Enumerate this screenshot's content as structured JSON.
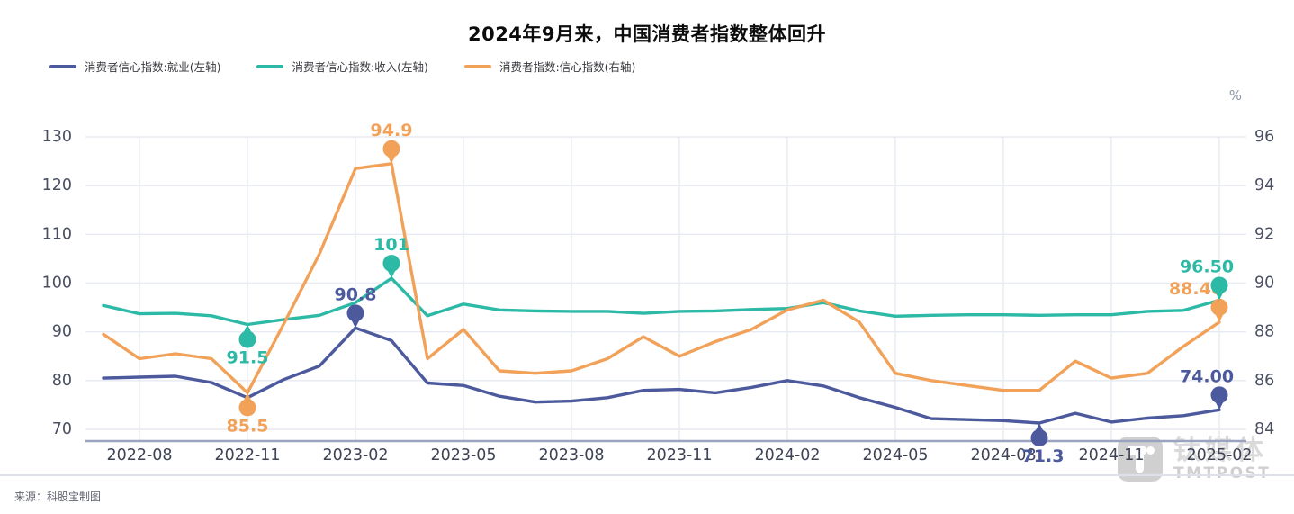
{
  "title": "2024年9月来，中国消费者指数整体回升",
  "right_axis_unit": "%",
  "source": "来源：科股宝制图",
  "watermark": {
    "cn": "钛媒体",
    "en": "TMTPOST"
  },
  "legend": [
    {
      "label": "消费者信心指数:就业(左轴)",
      "color": "#4C5A9D"
    },
    {
      "label": "消费者信心指数:收入(左轴)",
      "color": "#2CB9A6"
    },
    {
      "label": "消费者指数:信心指数(右轴)",
      "color": "#F2A159"
    }
  ],
  "chart_data": {
    "type": "line",
    "title": "2024年9月来，中国消费者指数整体回升",
    "grid": true,
    "legend_position": "top-left",
    "months": [
      "2022-07",
      "2022-08",
      "2022-09",
      "2022-10",
      "2022-11",
      "2022-12",
      "2023-01",
      "2023-02",
      "2023-03",
      "2023-04",
      "2023-05",
      "2023-06",
      "2023-07",
      "2023-08",
      "2023-09",
      "2023-10",
      "2023-11",
      "2023-12",
      "2024-01",
      "2024-02",
      "2024-03",
      "2024-04",
      "2024-05",
      "2024-06",
      "2024-07",
      "2024-08",
      "2024-09",
      "2024-10",
      "2024-11",
      "2024-12",
      "2025-01",
      "2025-02"
    ],
    "x_tick_labels": [
      "2022-08",
      "2022-11",
      "2023-02",
      "2023-05",
      "2023-08",
      "2023-11",
      "2024-02",
      "2024-05",
      "2024-08",
      "2024-11",
      "2025-02"
    ],
    "left_axis": {
      "ticks": [
        130,
        120,
        110,
        100,
        90,
        80,
        70
      ],
      "range": [
        70,
        130
      ]
    },
    "right_axis": {
      "ticks": [
        96,
        94,
        92,
        90,
        88,
        86,
        84
      ],
      "range": [
        84,
        96
      ],
      "unit": "%"
    },
    "series": [
      {
        "key": "employment",
        "name": "消费者信心指数:就业(左轴)",
        "axis": "left",
        "color": "#4C5A9D",
        "values": [
          80.5,
          80.7,
          80.9,
          79.6,
          76.5,
          80.2,
          83.0,
          90.8,
          88.2,
          79.5,
          79.0,
          76.8,
          75.6,
          75.8,
          76.5,
          78.0,
          78.2,
          77.5,
          78.6,
          80.0,
          78.9,
          76.5,
          74.5,
          72.2,
          72.0,
          71.8,
          71.3,
          73.3,
          71.5,
          72.3,
          72.8,
          74.0
        ]
      },
      {
        "key": "income",
        "name": "消费者信心指数:收入(左轴)",
        "axis": "left",
        "color": "#2CB9A6",
        "values": [
          95.4,
          93.7,
          93.8,
          93.3,
          91.5,
          92.5,
          93.4,
          96.0,
          101.0,
          93.3,
          95.7,
          94.5,
          94.3,
          94.2,
          94.2,
          93.8,
          94.2,
          94.3,
          94.6,
          94.8,
          96.0,
          94.3,
          93.2,
          93.4,
          93.5,
          93.5,
          93.4,
          93.5,
          93.5,
          94.2,
          94.4,
          96.5
        ]
      },
      {
        "key": "confidence",
        "name": "消费者指数:信心指数(右轴)",
        "axis": "right",
        "color": "#F2A159",
        "values": [
          87.9,
          86.9,
          87.1,
          86.9,
          85.5,
          88.3,
          91.2,
          94.7,
          94.9,
          86.9,
          88.1,
          86.4,
          86.3,
          86.4,
          86.9,
          87.8,
          87.0,
          87.6,
          88.1,
          88.9,
          89.3,
          88.4,
          86.3,
          86.0,
          85.8,
          85.6,
          85.6,
          86.8,
          86.1,
          86.3,
          87.4,
          88.4
        ]
      }
    ],
    "annotations": [
      {
        "series": 0,
        "month": "2023-02",
        "value": 90.8,
        "label": "90.8",
        "placement": "above",
        "dx": 0
      },
      {
        "series": 0,
        "month": "2024-09",
        "value": 71.3,
        "label": "71.3",
        "placement": "below",
        "dx": 4
      },
      {
        "series": 0,
        "month": "2025-02",
        "value": 74.0,
        "label": "74.00",
        "placement": "above",
        "dx": -14
      },
      {
        "series": 2,
        "month": "2022-11",
        "value": 85.5,
        "label": "85.5",
        "placement": "below",
        "dx": 0
      },
      {
        "series": 2,
        "month": "2023-03",
        "value": 94.9,
        "label": "94.9",
        "placement": "above",
        "dx": 0
      },
      {
        "series": 2,
        "month": "2025-02",
        "value": 88.4,
        "label": "88.40",
        "placement": "above",
        "dx": -26
      },
      {
        "series": 1,
        "month": "2022-11",
        "value": 91.5,
        "label": "91.5",
        "placement": "below",
        "dx": 0
      },
      {
        "series": 1,
        "month": "2023-03",
        "value": 101.0,
        "label": "101",
        "placement": "above",
        "dx": 0
      },
      {
        "series": 1,
        "month": "2025-02",
        "value": 96.5,
        "label": "96.50",
        "placement": "above",
        "dx": -14
      }
    ]
  }
}
